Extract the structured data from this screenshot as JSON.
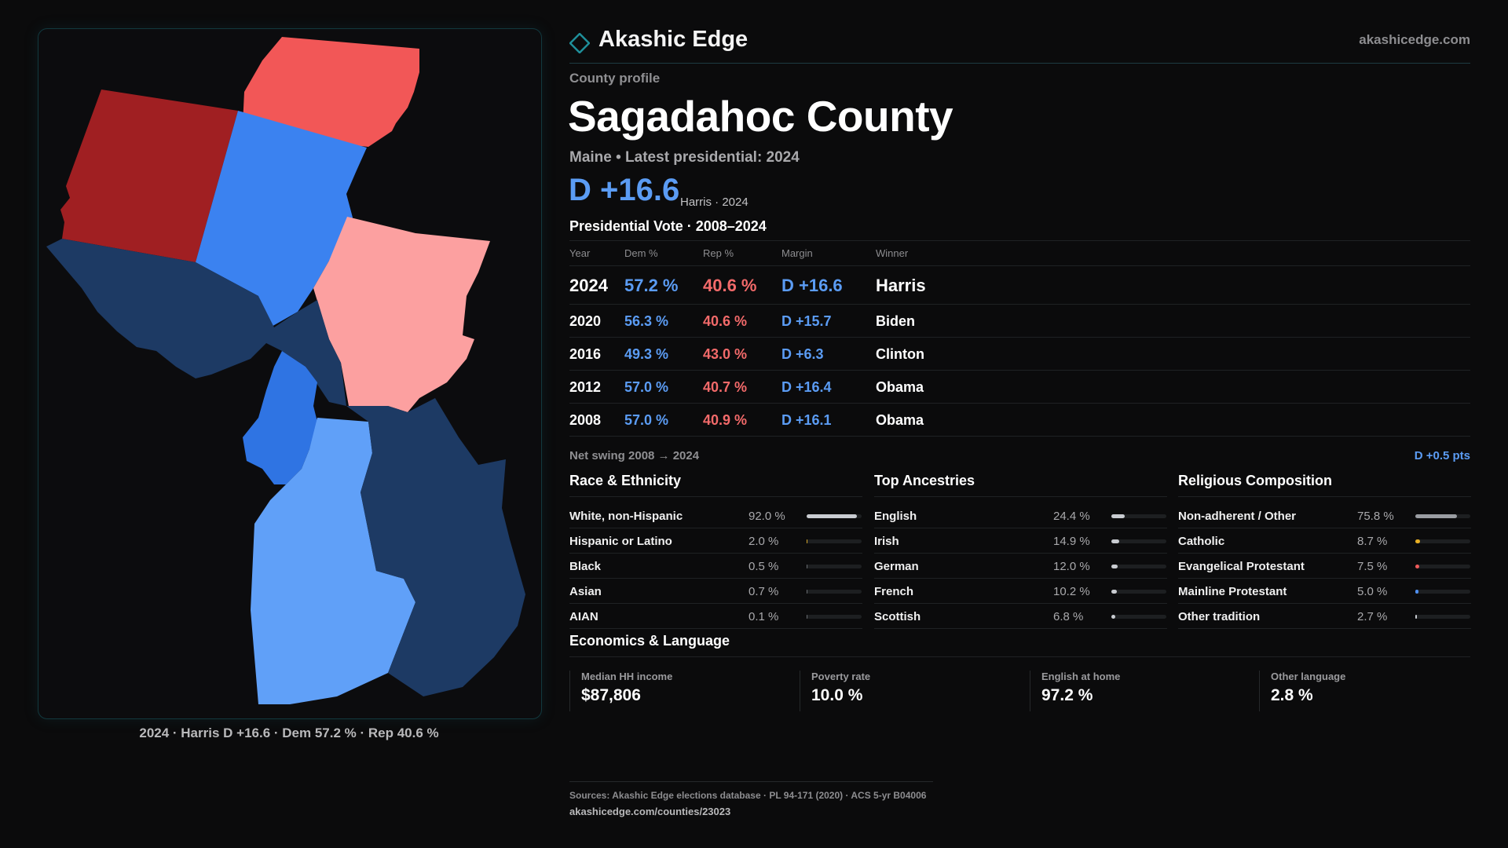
{
  "brand": {
    "name": "Akashic Edge",
    "url": "akashicedge.com",
    "accent": "#1f8f9a"
  },
  "profile_label": "County profile",
  "county": "Sagadahoc County",
  "subtitle": "Maine • Latest presidential: 2024",
  "headline_margin": "D +16.6",
  "headline_note": "Harris · 2024",
  "map": {
    "caption": "2024 · Harris D +16.6 · Dem 57.2 % · Rep 40.6 %",
    "colors": {
      "strong_rep": "#a01f22",
      "rep": "#f25757",
      "lean_rep": "#fca0a0",
      "blue": "#3b82f0",
      "mid_blue": "#2f74e3",
      "light_blue": "#60a0f8",
      "navy": "#1d3a64"
    }
  },
  "vote": {
    "section_title": "Presidential Vote · 2008–2024",
    "headers": {
      "year": "Year",
      "dem": "Dem %",
      "rep": "Rep %",
      "margin": "Margin",
      "winner": "Winner"
    },
    "rows": [
      {
        "year": "2024",
        "dem": "57.2 %",
        "rep": "40.6 %",
        "margin": "D +16.6",
        "winner": "Harris"
      },
      {
        "year": "2020",
        "dem": "56.3 %",
        "rep": "40.6 %",
        "margin": "D +15.7",
        "winner": "Biden"
      },
      {
        "year": "2016",
        "dem": "49.3 %",
        "rep": "43.0 %",
        "margin": "D +6.3",
        "winner": "Clinton"
      },
      {
        "year": "2012",
        "dem": "57.0 %",
        "rep": "40.7 %",
        "margin": "D +16.4",
        "winner": "Obama"
      },
      {
        "year": "2008",
        "dem": "57.0 %",
        "rep": "40.9 %",
        "margin": "D +16.1",
        "winner": "Obama"
      }
    ],
    "swing_label": "Net swing 2008 → 2024",
    "swing_value": "D +0.5 pts"
  },
  "race": {
    "title": "Race & Ethnicity",
    "rows": [
      {
        "label": "White, non-Hispanic",
        "value": "92.0 %",
        "pct": 92.0,
        "color": "#c9ccd1"
      },
      {
        "label": "Hispanic or Latino",
        "value": "2.0 %",
        "pct": 2.0,
        "color": "#d6a82a"
      },
      {
        "label": "Black",
        "value": "0.5 %",
        "pct": 0.5,
        "color": "#6b6e73"
      },
      {
        "label": "Asian",
        "value": "0.7 %",
        "pct": 0.7,
        "color": "#6b6e73"
      },
      {
        "label": "AIAN",
        "value": "0.1 %",
        "pct": 0.1,
        "color": "#6b6e73"
      }
    ]
  },
  "ancestry": {
    "title": "Top Ancestries",
    "rows": [
      {
        "label": "English",
        "value": "24.4 %",
        "pct": 24.4,
        "color": "#c9ccd1"
      },
      {
        "label": "Irish",
        "value": "14.9 %",
        "pct": 14.9,
        "color": "#c9ccd1"
      },
      {
        "label": "German",
        "value": "12.0 %",
        "pct": 12.0,
        "color": "#c9ccd1"
      },
      {
        "label": "French",
        "value": "10.2 %",
        "pct": 10.2,
        "color": "#c9ccd1"
      },
      {
        "label": "Scottish",
        "value": "6.8 %",
        "pct": 6.8,
        "color": "#c9ccd1"
      }
    ]
  },
  "religion": {
    "title": "Religious Composition",
    "rows": [
      {
        "label": "Non-adherent / Other",
        "value": "75.8 %",
        "pct": 75.8,
        "color": "#9a9da2"
      },
      {
        "label": "Catholic",
        "value": "8.7 %",
        "pct": 8.7,
        "color": "#e8b024"
      },
      {
        "label": "Evangelical Protestant",
        "value": "7.5 %",
        "pct": 7.5,
        "color": "#ef5a5a"
      },
      {
        "label": "Mainline Protestant",
        "value": "5.0 %",
        "pct": 5.0,
        "color": "#4f8ff0"
      },
      {
        "label": "Other tradition",
        "value": "2.7 %",
        "pct": 2.7,
        "color": "#c9ccd1"
      }
    ]
  },
  "economics": {
    "title": "Economics & Language",
    "items": [
      {
        "label": "Median HH income",
        "value": "$87,806"
      },
      {
        "label": "Poverty rate",
        "value": "10.0 %"
      },
      {
        "label": "English at home",
        "value": "97.2 %"
      },
      {
        "label": "Other language",
        "value": "2.8 %"
      }
    ]
  },
  "footer": {
    "sources": "Sources: Akashic Edge elections database · PL 94-171 (2020) · ACS 5-yr B04006",
    "url": "akashicedge.com/counties/23023"
  }
}
